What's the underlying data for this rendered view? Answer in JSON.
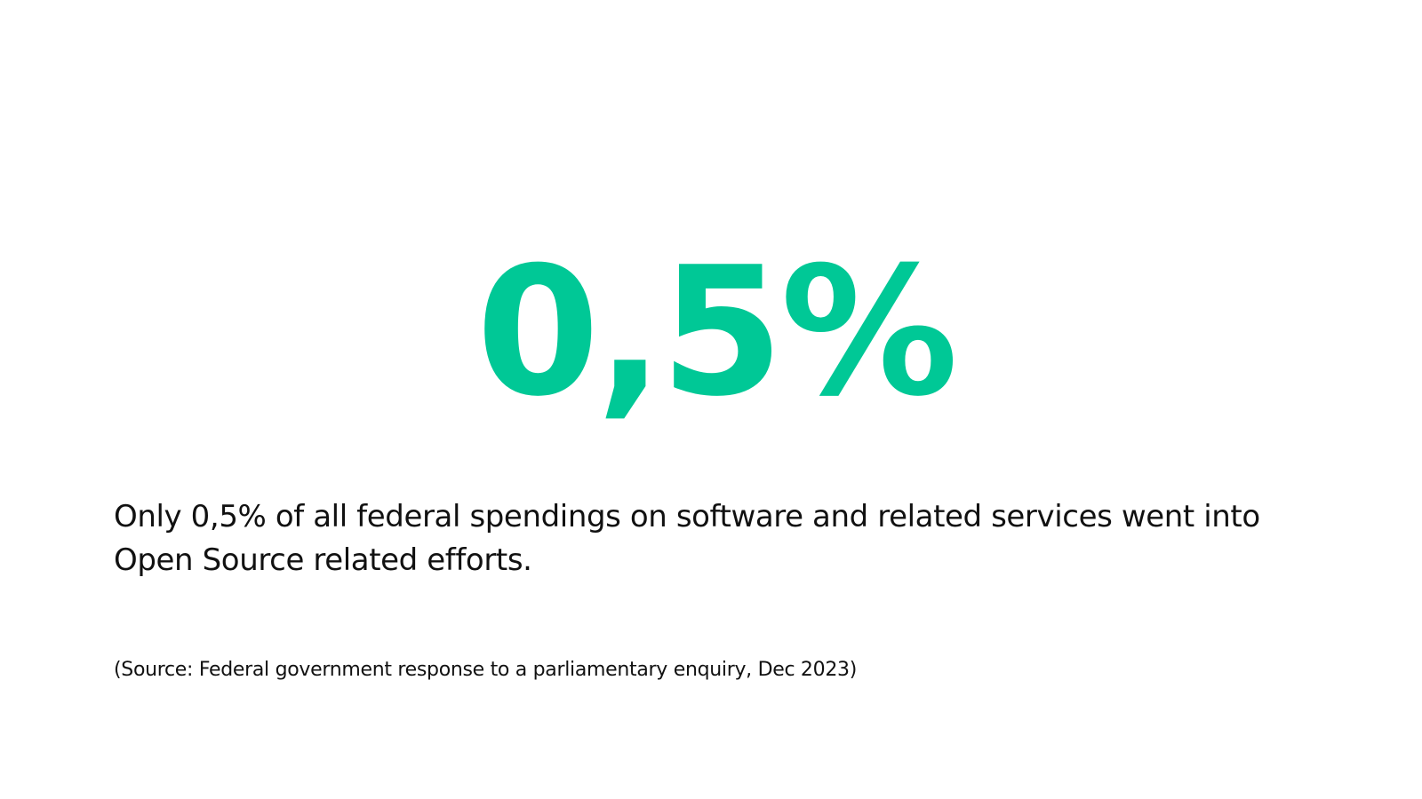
{
  "slide": {
    "accent_color": "#00c896",
    "stat": "0,5%",
    "description_lines": [
      "Only 0,5% of all federal spendings on software and related services went into",
      "Open Source related efforts."
    ],
    "source": "(Source: Federal government response to a parliamentary enquiry, Dec 2023)"
  }
}
